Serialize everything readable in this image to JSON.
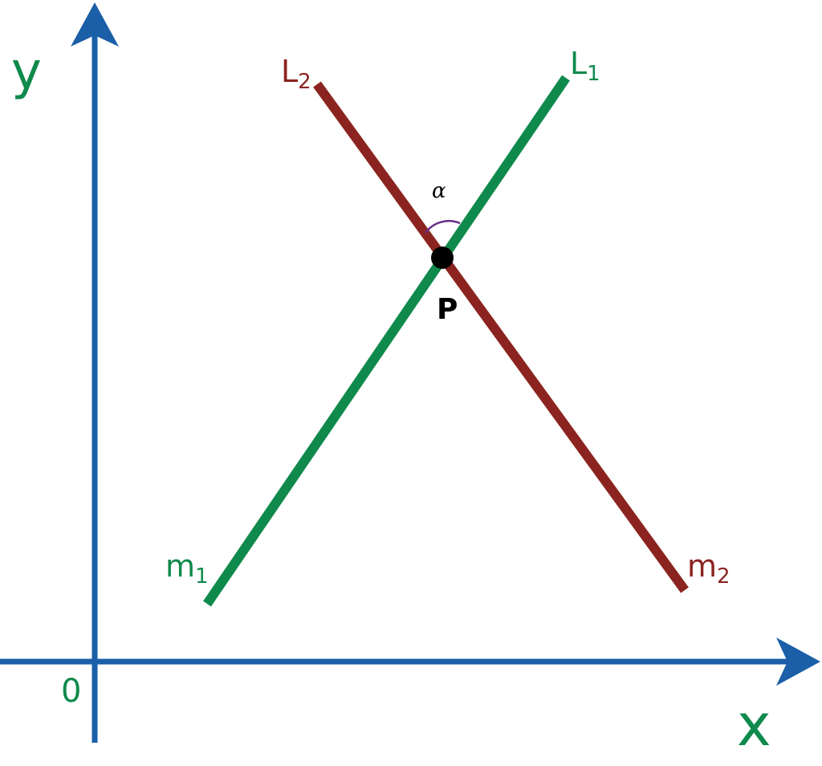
{
  "axes": {
    "y_label": "y",
    "x_label": "x",
    "origin_label": "0"
  },
  "lines": [
    {
      "name": "L",
      "name_sub": "1",
      "slope": "m",
      "slope_sub": "1"
    },
    {
      "name": "L",
      "name_sub": "2",
      "slope": "m",
      "slope_sub": "2"
    }
  ],
  "intersection": {
    "label": "P",
    "angle_label": "α"
  }
}
